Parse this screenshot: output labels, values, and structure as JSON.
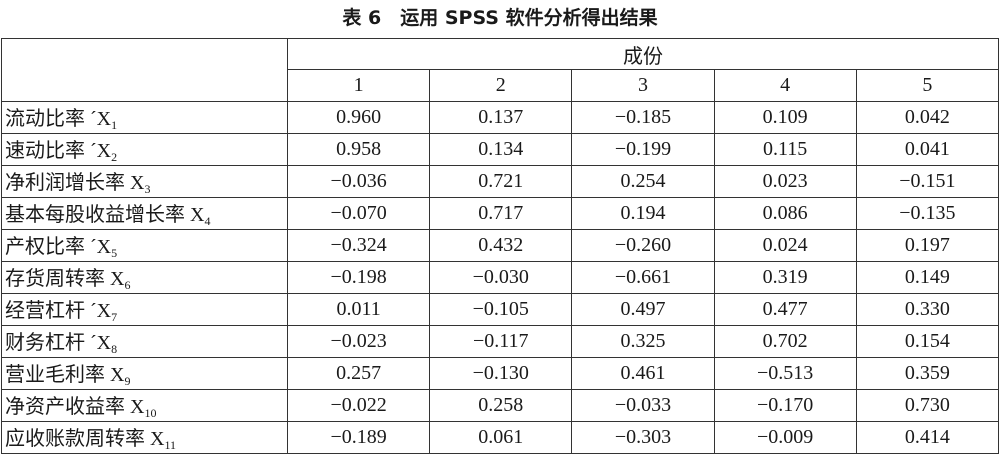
{
  "title": "表 6　运用 SPSS 软件分析得出结果",
  "table": {
    "group_header": "成份",
    "columns": [
      "1",
      "2",
      "3",
      "4",
      "5"
    ],
    "rows": [
      {
        "label": "流动比率 ´X",
        "sub": "1",
        "values": [
          "0.960",
          "0.137",
          "−0.185",
          "0.109",
          "0.042"
        ]
      },
      {
        "label": "速动比率 ´X",
        "sub": "2",
        "values": [
          "0.958",
          "0.134",
          "−0.199",
          "0.115",
          "0.041"
        ]
      },
      {
        "label": "净利润增长率 X",
        "sub": "3",
        "values": [
          "−0.036",
          "0.721",
          "0.254",
          "0.023",
          "−0.151"
        ]
      },
      {
        "label": "基本每股收益增长率 X",
        "sub": "4",
        "values": [
          "−0.070",
          "0.717",
          "0.194",
          "0.086",
          "−0.135"
        ]
      },
      {
        "label": "产权比率 ´X",
        "sub": "5",
        "values": [
          "−0.324",
          "0.432",
          "−0.260",
          "0.024",
          "0.197"
        ]
      },
      {
        "label": "存货周转率 X",
        "sub": "6",
        "values": [
          "−0.198",
          "−0.030",
          "−0.661",
          "0.319",
          "0.149"
        ]
      },
      {
        "label": "经营杠杆 ´X",
        "sub": "7",
        "values": [
          "0.011",
          "−0.105",
          "0.497",
          "0.477",
          "0.330"
        ]
      },
      {
        "label": "财务杠杆 ´X",
        "sub": "8",
        "values": [
          "−0.023",
          "−0.117",
          "0.325",
          "0.702",
          "0.154"
        ]
      },
      {
        "label": "营业毛利率 X",
        "sub": "9",
        "values": [
          "0.257",
          "−0.130",
          "0.461",
          "−0.513",
          "0.359"
        ]
      },
      {
        "label": "净资产收益率 X",
        "sub": "10",
        "values": [
          "−0.022",
          "0.258",
          "−0.033",
          "−0.170",
          "0.730"
        ]
      },
      {
        "label": "应收账款周转率 X",
        "sub": "11",
        "values": [
          "−0.189",
          "0.061",
          "−0.303",
          "−0.009",
          "0.414"
        ]
      }
    ]
  }
}
